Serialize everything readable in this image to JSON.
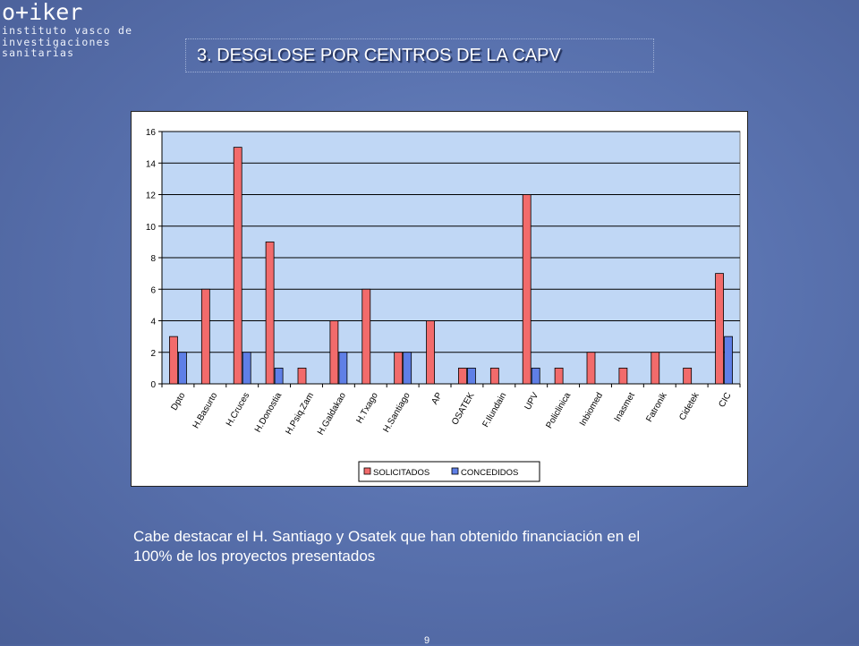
{
  "logo": {
    "brand": "o+iker",
    "lines": [
      "instituto vasco de",
      "investigaciones",
      "sanitarias"
    ]
  },
  "slide": {
    "title": "3. DESGLOSE POR CENTROS DE LA CAPV",
    "caption_line1": "Cabe destacar el H. Santiago y Osatek que han obtenido financiación en el",
    "caption_line2": "100% de los proyectos presentados",
    "page_number": "9"
  },
  "colors": {
    "plot_bg": "#c0d7f5",
    "series_solicitados": "#f26b6b",
    "series_concedidos": "#5f7fe6",
    "bar_outline": "#000000",
    "grid": "#000000"
  },
  "chart_data": {
    "type": "bar",
    "categories": [
      "Dpto",
      "H.Basurto",
      "H.Cruces",
      "H.Donostia",
      "H.Psiq.Zam",
      "H.Galdakao",
      "H.Txago",
      "H.Santiago",
      "AP",
      "OSATEK",
      "F.Ilundain",
      "UPV",
      "Policlinica",
      "Inbiomed",
      "Inasmet",
      "Fatronik",
      "Cidetek",
      "CIC"
    ],
    "series": [
      {
        "name": "SOLICITADOS",
        "values": [
          3,
          6,
          15,
          9,
          1,
          4,
          6,
          2,
          4,
          1,
          1,
          12,
          1,
          2,
          1,
          2,
          1,
          7
        ]
      },
      {
        "name": "CONCEDIDOS",
        "values": [
          2,
          0,
          2,
          1,
          0,
          2,
          0,
          2,
          0,
          1,
          0,
          1,
          0,
          0,
          0,
          0,
          0,
          3
        ]
      }
    ],
    "ylim": [
      0,
      16
    ],
    "yticks": [
      "0",
      "2",
      "4",
      "6",
      "8",
      "10",
      "12",
      "14",
      "16"
    ],
    "grid": true,
    "legend_position": "bottom"
  }
}
